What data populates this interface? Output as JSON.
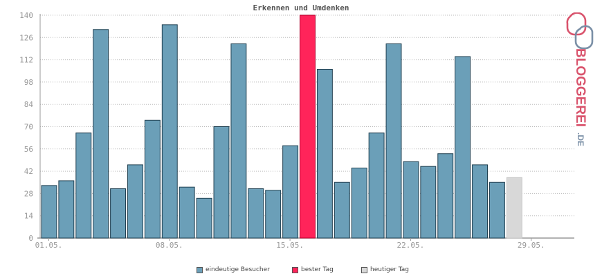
{
  "chart_data": {
    "type": "bar",
    "title": "Erkennen und Umdenken",
    "xlabel": "",
    "ylabel": "",
    "ylim": [
      0,
      140
    ],
    "yticks": [
      0,
      14,
      28,
      42,
      56,
      70,
      84,
      98,
      112,
      126,
      140
    ],
    "grid": true,
    "x_tick_labels": [
      {
        "index": 0,
        "label": "01.05."
      },
      {
        "index": 7,
        "label": "08.05."
      },
      {
        "index": 14,
        "label": "15.05."
      },
      {
        "index": 21,
        "label": "22.05."
      },
      {
        "index": 28,
        "label": "29.05."
      }
    ],
    "values": [
      33,
      36,
      66,
      131,
      31,
      46,
      74,
      134,
      32,
      25,
      70,
      122,
      31,
      30,
      58,
      140,
      106,
      35,
      44,
      66,
      122,
      48,
      45,
      53,
      114,
      46,
      35,
      38
    ],
    "best_index": 15,
    "today_index": 27,
    "total_slots": 31,
    "colors": {
      "normal": "#6b9fb8",
      "best": "#ff245a",
      "today": "#d8d8d8",
      "grid": "#bbbbbb",
      "axis": "#999999",
      "tick_text": "#999999"
    },
    "legend": [
      {
        "label": "eindeutige Besucher",
        "color": "#6b9fb8"
      },
      {
        "label": "bester Tag",
        "color": "#ff245a"
      },
      {
        "label": "heutiger Tag",
        "color": "#d8d8d8"
      }
    ]
  },
  "logo": {
    "text": "BLOGGEREI",
    "suffix": ".DE"
  }
}
